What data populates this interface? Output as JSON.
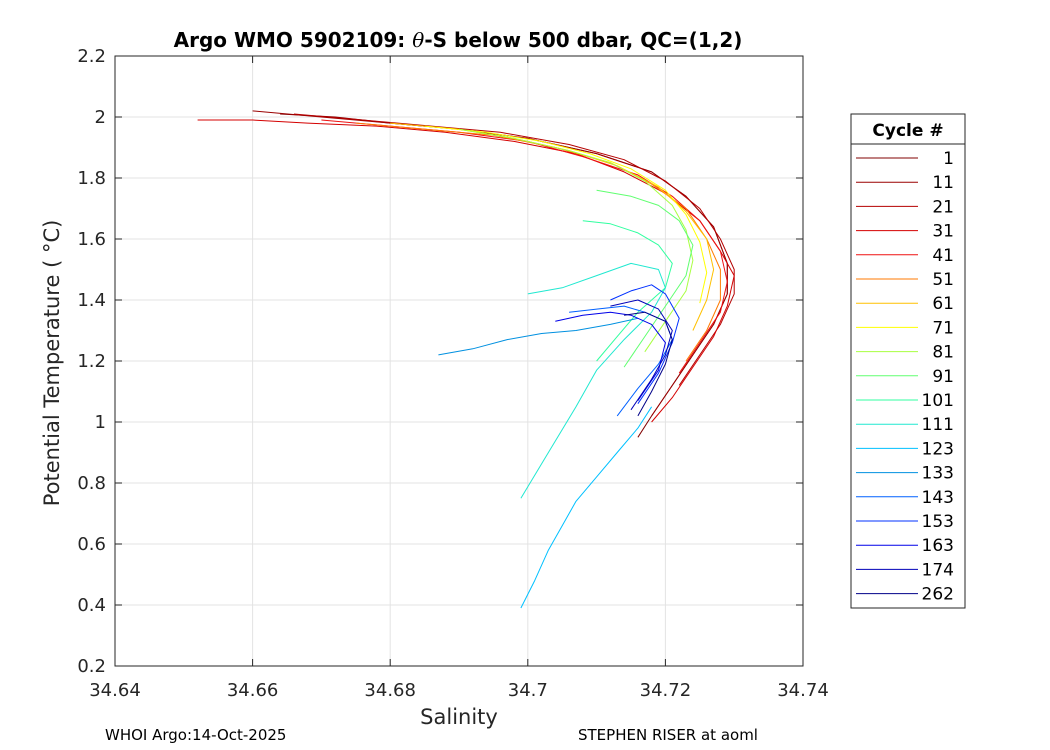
{
  "chart_data": {
    "type": "line",
    "title_prefix": "Argo WMO 5902109: ",
    "title_theta": "θ",
    "title_suffix": "-S below 500 dbar,  QC=(1,2)",
    "xlabel": "Salinity",
    "ylabel": "Potential Temperature ( °C)",
    "xlim": [
      34.64,
      34.74
    ],
    "ylim": [
      0.2,
      2.2
    ],
    "xticks": [
      34.64,
      34.66,
      34.68,
      34.7,
      34.72,
      34.74
    ],
    "xtick_labels": [
      "34.64",
      "34.66",
      "34.68",
      "34.7",
      "34.72",
      "34.74"
    ],
    "yticks": [
      0.2,
      0.4,
      0.6,
      0.8,
      1.0,
      1.2,
      1.4,
      1.6,
      1.8,
      2.0,
      2.2
    ],
    "ytick_labels": [
      "0.2",
      "0.4",
      "0.6",
      "0.8",
      "1",
      "1.2",
      "1.4",
      "1.6",
      "1.8",
      "2",
      "2.2"
    ],
    "grid": true,
    "legend": {
      "title": "Cycle #",
      "placement": "right",
      "entries": [
        {
          "label": "1",
          "color": "#800000"
        },
        {
          "label": "11",
          "color": "#9a0000"
        },
        {
          "label": "21",
          "color": "#b50000"
        },
        {
          "label": "31",
          "color": "#d40000"
        },
        {
          "label": "41",
          "color": "#ef1010"
        },
        {
          "label": "51",
          "color": "#ff7a00"
        },
        {
          "label": "61",
          "color": "#ffc000"
        },
        {
          "label": "71",
          "color": "#ffff00"
        },
        {
          "label": "81",
          "color": "#a8ff40"
        },
        {
          "label": "91",
          "color": "#60ff70"
        },
        {
          "label": "101",
          "color": "#30ffa0"
        },
        {
          "label": "111",
          "color": "#20e8d0"
        },
        {
          "label": "123",
          "color": "#00c0ff"
        },
        {
          "label": "133",
          "color": "#0090e0"
        },
        {
          "label": "143",
          "color": "#0060ff"
        },
        {
          "label": "153",
          "color": "#0030ff"
        },
        {
          "label": "163",
          "color": "#0000e8"
        },
        {
          "label": "174",
          "color": "#0000b8"
        },
        {
          "label": "262",
          "color": "#000088"
        }
      ]
    },
    "series": [
      {
        "name": "1",
        "color": "#800000",
        "x": [
          34.664,
          34.672,
          34.68,
          34.69,
          34.7,
          34.71,
          34.718,
          34.723,
          34.727,
          34.729,
          34.729,
          34.727,
          34.724,
          34.721,
          34.718,
          34.716
        ],
        "y": [
          2.01,
          2.0,
          1.98,
          1.96,
          1.93,
          1.88,
          1.82,
          1.74,
          1.64,
          1.52,
          1.42,
          1.32,
          1.22,
          1.12,
          1.02,
          0.95
        ]
      },
      {
        "name": "11",
        "color": "#9a0000",
        "x": [
          34.66,
          34.67,
          34.68,
          34.69,
          34.7,
          34.71,
          34.718,
          34.723,
          34.727,
          34.729,
          34.729,
          34.727,
          34.724,
          34.721,
          34.718
        ],
        "y": [
          2.02,
          2.0,
          1.98,
          1.96,
          1.93,
          1.88,
          1.82,
          1.74,
          1.64,
          1.52,
          1.42,
          1.32,
          1.22,
          1.12,
          1.02
        ]
      },
      {
        "name": "21",
        "color": "#b50000",
        "x": [
          34.666,
          34.676,
          34.686,
          34.696,
          34.706,
          34.714,
          34.72,
          34.725,
          34.728,
          34.73,
          34.73,
          34.728,
          34.725,
          34.722
        ],
        "y": [
          2.01,
          1.99,
          1.97,
          1.95,
          1.91,
          1.86,
          1.79,
          1.7,
          1.6,
          1.5,
          1.42,
          1.32,
          1.22,
          1.12
        ]
      },
      {
        "name": "31",
        "color": "#d40000",
        "x": [
          34.652,
          34.66,
          34.668,
          34.678,
          34.688,
          34.698,
          34.707,
          34.714,
          34.72,
          34.725,
          34.728,
          34.73,
          34.729,
          34.727,
          34.724,
          34.721,
          34.718
        ],
        "y": [
          1.99,
          1.99,
          1.98,
          1.97,
          1.95,
          1.92,
          1.88,
          1.82,
          1.75,
          1.66,
          1.56,
          1.48,
          1.38,
          1.28,
          1.18,
          1.08,
          1.0
        ]
      },
      {
        "name": "41",
        "color": "#ef1010",
        "x": [
          34.67,
          34.68,
          34.69,
          34.7,
          34.708,
          34.716,
          34.721,
          34.725,
          34.728,
          34.729,
          34.728,
          34.725,
          34.722
        ],
        "y": [
          1.99,
          1.97,
          1.95,
          1.92,
          1.87,
          1.81,
          1.74,
          1.66,
          1.56,
          1.46,
          1.36,
          1.26,
          1.16
        ]
      },
      {
        "name": "51",
        "color": "#ff7a00",
        "x": [
          34.675,
          34.685,
          34.695,
          34.704,
          34.712,
          34.718,
          34.723,
          34.726,
          34.728,
          34.728,
          34.726,
          34.723
        ],
        "y": [
          1.98,
          1.96,
          1.94,
          1.9,
          1.85,
          1.78,
          1.7,
          1.6,
          1.5,
          1.4,
          1.3,
          1.2
        ]
      },
      {
        "name": "61",
        "color": "#ffc000",
        "x": [
          34.68,
          34.69,
          34.698,
          34.706,
          34.713,
          34.719,
          34.723,
          34.726,
          34.727,
          34.726,
          34.724
        ],
        "y": [
          1.98,
          1.96,
          1.93,
          1.89,
          1.84,
          1.77,
          1.69,
          1.6,
          1.5,
          1.4,
          1.3
        ]
      },
      {
        "name": "71",
        "color": "#ffff00",
        "x": [
          34.685,
          34.694,
          34.702,
          34.709,
          34.715,
          34.72,
          34.723,
          34.725,
          34.726,
          34.725
        ],
        "y": [
          1.97,
          1.95,
          1.92,
          1.88,
          1.83,
          1.76,
          1.68,
          1.59,
          1.49,
          1.39
        ]
      },
      {
        "name": "81",
        "color": "#a8ff40",
        "x": [
          34.69,
          34.698,
          34.706,
          34.712,
          34.717,
          34.721,
          34.723,
          34.724,
          34.723,
          34.72,
          34.717
        ],
        "y": [
          1.96,
          1.93,
          1.89,
          1.85,
          1.79,
          1.71,
          1.63,
          1.53,
          1.43,
          1.33,
          1.23
        ]
      },
      {
        "name": "91",
        "color": "#60ff70",
        "x": [
          34.71,
          34.715,
          34.719,
          34.722,
          34.724,
          34.723,
          34.72,
          34.717,
          34.714
        ],
        "y": [
          1.76,
          1.74,
          1.71,
          1.66,
          1.58,
          1.48,
          1.38,
          1.28,
          1.18
        ]
      },
      {
        "name": "101",
        "color": "#30ffa0",
        "x": [
          34.708,
          34.712,
          34.716,
          34.719,
          34.721,
          34.72,
          34.716,
          34.713,
          34.71
        ],
        "y": [
          1.66,
          1.65,
          1.62,
          1.58,
          1.52,
          1.44,
          1.36,
          1.28,
          1.2
        ]
      },
      {
        "name": "111",
        "color": "#20e8d0",
        "x": [
          34.7,
          34.705,
          34.71,
          34.715,
          34.719,
          34.72,
          34.718,
          34.714,
          34.71,
          34.707,
          34.703,
          34.699
        ],
        "y": [
          1.42,
          1.44,
          1.48,
          1.52,
          1.5,
          1.44,
          1.36,
          1.27,
          1.17,
          1.05,
          0.9,
          0.75
        ]
      },
      {
        "name": "123",
        "color": "#00c0ff",
        "x": [
          34.718,
          34.716,
          34.713,
          34.71,
          34.707,
          34.705,
          34.703,
          34.701,
          34.699
        ],
        "y": [
          1.05,
          0.98,
          0.9,
          0.82,
          0.74,
          0.66,
          0.58,
          0.48,
          0.39
        ]
      },
      {
        "name": "133",
        "color": "#0090e0",
        "x": [
          34.687,
          34.692,
          34.697,
          34.702,
          34.707,
          34.712,
          34.716
        ],
        "y": [
          1.22,
          1.24,
          1.27,
          1.29,
          1.3,
          1.32,
          1.34
        ]
      },
      {
        "name": "143",
        "color": "#0060ff",
        "x": [
          34.706,
          34.71,
          34.714,
          34.717,
          34.72,
          34.721,
          34.719,
          34.716,
          34.713
        ],
        "y": [
          1.36,
          1.37,
          1.38,
          1.36,
          1.33,
          1.27,
          1.19,
          1.11,
          1.02
        ]
      },
      {
        "name": "153",
        "color": "#0030ff",
        "x": [
          34.712,
          34.715,
          34.718,
          34.72,
          34.722,
          34.721,
          34.719,
          34.716
        ],
        "y": [
          1.4,
          1.43,
          1.45,
          1.42,
          1.34,
          1.26,
          1.16,
          1.06
        ]
      },
      {
        "name": "163",
        "color": "#0000e8",
        "x": [
          34.704,
          34.708,
          34.712,
          34.715,
          34.718,
          34.72,
          34.719,
          34.716
        ],
        "y": [
          1.33,
          1.35,
          1.36,
          1.35,
          1.32,
          1.26,
          1.17,
          1.07
        ]
      },
      {
        "name": "174",
        "color": "#0000b8",
        "x": [
          34.712,
          34.716,
          34.719,
          34.721,
          34.72,
          34.718,
          34.715
        ],
        "y": [
          1.38,
          1.4,
          1.37,
          1.3,
          1.22,
          1.14,
          1.04
        ]
      },
      {
        "name": "262",
        "color": "#000088",
        "x": [
          34.714,
          34.717,
          34.72,
          34.721,
          34.72,
          34.718,
          34.716
        ],
        "y": [
          1.35,
          1.36,
          1.33,
          1.27,
          1.19,
          1.1,
          1.02
        ]
      }
    ]
  },
  "footer": {
    "left": "WHOI Argo:14-Oct-2025",
    "right": "STEPHEN RISER at aoml"
  }
}
